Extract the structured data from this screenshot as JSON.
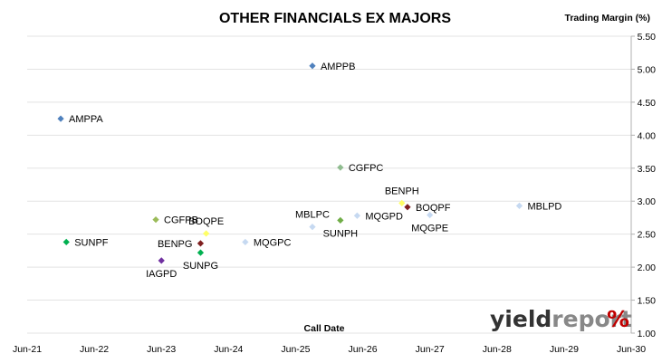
{
  "chart_data": {
    "type": "scatter",
    "title": "OTHER FINANCIALS EX MAJORS",
    "xlabel": "Call Date",
    "ylabel": "Trading Margin (%)",
    "x_ticks": [
      "Jun-21",
      "Jun-22",
      "Jun-23",
      "Jun-24",
      "Jun-25",
      "Jun-26",
      "Jun-27",
      "Jun-28",
      "Jun-29",
      "Jun-30"
    ],
    "y_ticks": [
      "1.00",
      "1.50",
      "2.00",
      "2.50",
      "3.00",
      "3.50",
      "4.00",
      "4.50",
      "5.00",
      "5.50"
    ],
    "xlim": [
      "2021-06",
      "2030-06"
    ],
    "ylim": [
      1.0,
      5.5
    ],
    "y_axis_side": "right",
    "grid": {
      "horizontal": true,
      "vertical": false
    },
    "legend": "none",
    "points": [
      {
        "label": "AMPPA",
        "x": "2021-12",
        "y": 4.25,
        "color": "#4f81bd",
        "label_pos": "right"
      },
      {
        "label": "AMPPB",
        "x": "2025-09",
        "y": 5.05,
        "color": "#4f81bd",
        "label_pos": "right"
      },
      {
        "label": "CGFPC",
        "x": "2026-02",
        "y": 3.51,
        "color": "#8fbc8f",
        "label_pos": "right"
      },
      {
        "label": "SUNPF",
        "x": "2022-01",
        "y": 2.38,
        "color": "#00b050",
        "label_pos": "right"
      },
      {
        "label": "CGFPB",
        "x": "2023-05",
        "y": 2.72,
        "color": "#9bbb59",
        "label_pos": "right"
      },
      {
        "label": "IAGPD",
        "x": "2023-06",
        "y": 2.1,
        "color": "#7030a0",
        "label_pos": "below"
      },
      {
        "label": "BOQPE",
        "x": "2024-02",
        "y": 2.51,
        "color": "#ffff66",
        "label_pos": "above"
      },
      {
        "label": "BENPG",
        "x": "2024-01",
        "y": 2.36,
        "color": "#7f2020",
        "label_pos": "left"
      },
      {
        "label": "SUNPG",
        "x": "2024-01",
        "y": 2.22,
        "color": "#00b050",
        "label_pos": "below"
      },
      {
        "label": "MQGPC",
        "x": "2024-09",
        "y": 2.38,
        "color": "#c6d9f1",
        "label_pos": "right"
      },
      {
        "label": "MBLPC",
        "x": "2025-09",
        "y": 2.61,
        "color": "#c6d9f1",
        "label_pos": "above"
      },
      {
        "label": "SUNPH",
        "x": "2026-02",
        "y": 2.71,
        "color": "#70ad47",
        "label_pos": "below"
      },
      {
        "label": "MQGPD",
        "x": "2026-05",
        "y": 2.78,
        "color": "#c6d9f1",
        "label_pos": "right"
      },
      {
        "label": "BENPH",
        "x": "2027-01",
        "y": 2.97,
        "color": "#ffff66",
        "label_pos": "above"
      },
      {
        "label": "BOQPF",
        "x": "2027-02",
        "y": 2.91,
        "color": "#7f2020",
        "label_pos": "right"
      },
      {
        "label": "MQGPE",
        "x": "2027-06",
        "y": 2.79,
        "color": "#c6d9f1",
        "label_pos": "below"
      },
      {
        "label": "MBLPD",
        "x": "2028-10",
        "y": 2.93,
        "color": "#c6d9f1",
        "label_pos": "right"
      }
    ]
  },
  "logo": {
    "text": "yieldreport",
    "mark": "%",
    "colors": {
      "yield": "#333333",
      "report": "#888888",
      "mark": "#c00000"
    }
  }
}
